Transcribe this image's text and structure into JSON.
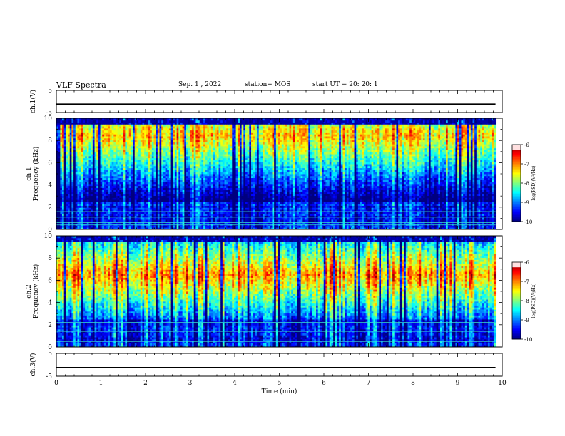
{
  "header": {
    "title": "VLF Spectra",
    "date": "Sep. 1 , 2022",
    "station": "station= MOS",
    "start": "start  UT =   20: 20: 1"
  },
  "chart_data": [
    {
      "type": "line",
      "name": "ch1-waveform-panel",
      "ylabel": "ch.1(V)",
      "ylim": [
        -5,
        5
      ],
      "yticks": [
        "5",
        "-5"
      ],
      "x": [
        0,
        1,
        2,
        3,
        4,
        5,
        6,
        7,
        8,
        9,
        9.85
      ],
      "y": [
        -1.2,
        -1.2,
        -1.2,
        -1.2,
        -1.2,
        -1.2,
        -1.2,
        -1.2,
        -1.2,
        -1.2,
        -1.2
      ],
      "xlim": [
        0,
        10
      ]
    },
    {
      "type": "heatmap",
      "name": "ch1-spectrogram",
      "ylabel": "ch.1\nFrequency (kHz)",
      "ylim": [
        0,
        10
      ],
      "yticks": [
        "0",
        "2",
        "4",
        "6",
        "8",
        "10"
      ],
      "xlim": [
        0,
        10
      ],
      "data_end_min": 9.85,
      "colorbar": {
        "label": "log(PSD)(V²/Hz)",
        "range": [
          -10,
          -6
        ],
        "ticks": [
          "-6",
          "-7",
          "-8",
          "-9",
          "-10"
        ]
      },
      "band_kHz": [
        2.5,
        9.5
      ],
      "peak_kHz": 8.5,
      "level_range_log": [
        -10,
        -7
      ],
      "lines_kHz": [
        0.4,
        0.6,
        1.1,
        1.6
      ]
    },
    {
      "type": "heatmap",
      "name": "ch2-spectrogram",
      "ylabel": "ch.2\nFrequency (kHz)",
      "ylim": [
        0,
        10
      ],
      "yticks": [
        "0",
        "2",
        "4",
        "6",
        "8",
        "10"
      ],
      "xlim": [
        0,
        10
      ],
      "data_end_min": 9.85,
      "colorbar": {
        "label": "log(PSD)(V²/Hz)",
        "range": [
          -10,
          -6
        ],
        "ticks": [
          "-6",
          "-7",
          "-8",
          "-9",
          "-10"
        ]
      },
      "band_kHz": [
        2.5,
        9.5
      ],
      "peak_kHz": 6.5,
      "level_range_log": [
        -10,
        -6.8
      ],
      "lines_kHz": [
        0.5,
        1.0,
        1.4,
        2.2
      ]
    },
    {
      "type": "line",
      "name": "ch3-waveform-panel",
      "ylabel": "ch.3(V)",
      "ylim": [
        -5,
        5
      ],
      "yticks": [
        "5",
        "-5"
      ],
      "x": [
        0,
        1,
        2,
        3,
        4,
        5,
        6,
        7,
        8,
        9,
        9.85
      ],
      "y": [
        -1.2,
        -1.2,
        -1.2,
        -1.2,
        -1.2,
        -1.2,
        -1.2,
        -1.2,
        -1.2,
        -1.2,
        -1.2
      ],
      "xlim": [
        0,
        10
      ],
      "xlabel": "Time  (min)",
      "xticks": [
        "0",
        "1",
        "2",
        "3",
        "4",
        "5",
        "6",
        "7",
        "8",
        "9",
        "10"
      ]
    }
  ]
}
